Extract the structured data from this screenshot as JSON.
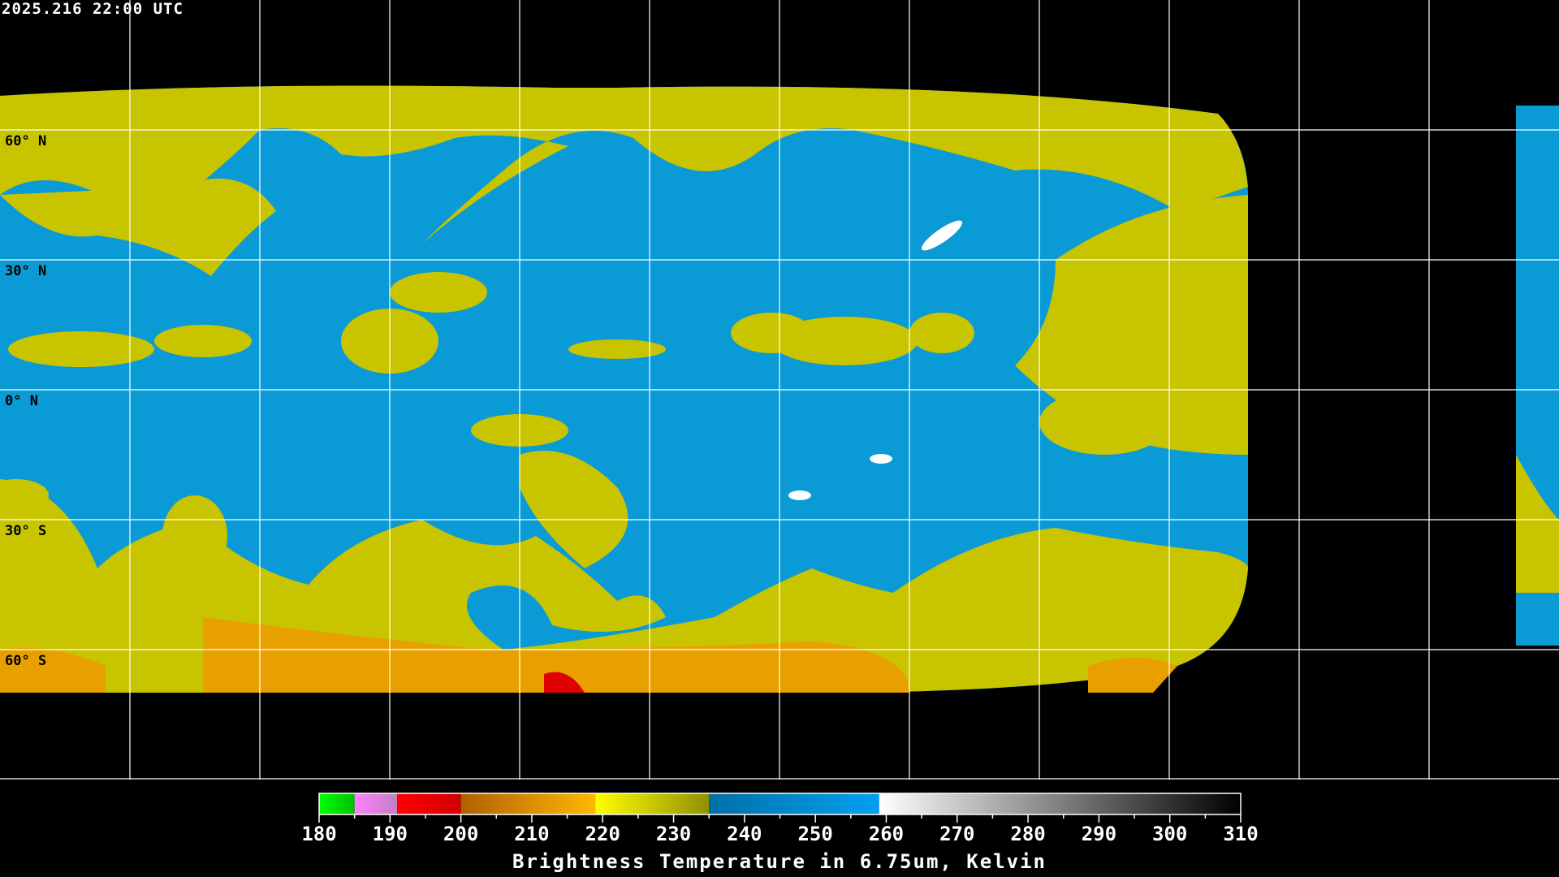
{
  "header": {
    "timestamp": "2025.216 22:00 UTC"
  },
  "map": {
    "projection": "equirectangular",
    "lat_labels": [
      "60° N",
      "30° N",
      "0° N",
      "30° S",
      "60° S"
    ],
    "grid_spacing_deg": 30,
    "colors": {
      "background": "#000000",
      "grid": "#ffffff",
      "coast_over_data": "#000000",
      "coast_over_space": "#ffffff",
      "moist": "#0a9ad6",
      "dry": "#cccc00",
      "very_dry": "#e8a000"
    }
  },
  "colorbar": {
    "title": "Brightness Temperature in 6.75um, Kelvin",
    "min": 180,
    "max": 310,
    "tick_labels": [
      "180",
      "190",
      "200",
      "210",
      "220",
      "230",
      "240",
      "250",
      "260",
      "270",
      "280",
      "290",
      "300",
      "310"
    ],
    "segments": [
      {
        "from": 180,
        "to": 185,
        "c1": "#00ff00",
        "c2": "#00c000"
      },
      {
        "from": 185,
        "to": 191,
        "c1": "#ff80ff",
        "c2": "#c080c0"
      },
      {
        "from": 191,
        "to": 200,
        "c1": "#ff0000",
        "c2": "#d00000"
      },
      {
        "from": 200,
        "to": 219,
        "c1": "#b06000",
        "c2": "#ffb800"
      },
      {
        "from": 219,
        "to": 235,
        "c1": "#ffff00",
        "c2": "#909000"
      },
      {
        "from": 235,
        "to": 259,
        "c1": "#0070a8",
        "c2": "#00a0f0"
      },
      {
        "from": 259,
        "to": 310,
        "c1": "#ffffff",
        "c2": "#000000"
      }
    ]
  }
}
